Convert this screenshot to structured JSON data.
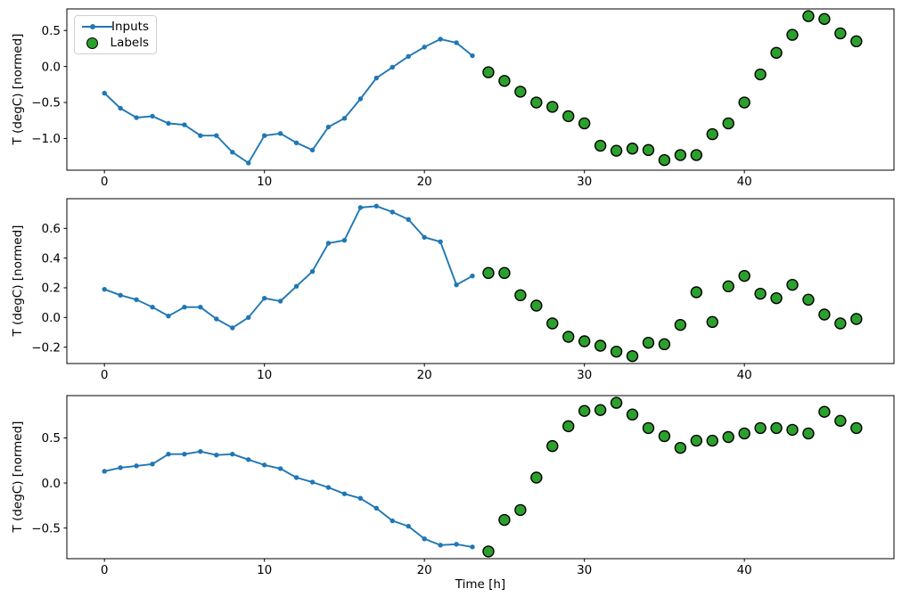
{
  "figure": {
    "title": "",
    "background": "#ffffff",
    "x_axis_label": "Time [h]",
    "y_axis_label": "T (degC) [normed]",
    "legend": {
      "location": "upper left",
      "items": [
        {
          "label": "Inputs",
          "marker": "line-with-dot",
          "color": "#1f77b4"
        },
        {
          "label": "Labels",
          "marker": "circle",
          "fill": "#2ca02c",
          "edge": "#000000"
        }
      ]
    }
  },
  "chart_data": [
    {
      "type": "line",
      "title": "",
      "xlabel": "",
      "ylabel": "T (degC) [normed]",
      "xlim": [
        -2.35,
        49.35
      ],
      "ylim": [
        -1.44,
        0.8
      ],
      "xticks": [
        0,
        10,
        20,
        30,
        40
      ],
      "yticks": [
        0.5,
        0.0,
        -0.5,
        -1.0
      ],
      "grid": false,
      "legend_visible": true,
      "series": [
        {
          "name": "Inputs",
          "type": "line+marker",
          "color": "#1f77b4",
          "x": [
            0,
            1,
            2,
            3,
            4,
            5,
            6,
            7,
            8,
            9,
            10,
            11,
            12,
            13,
            14,
            15,
            16,
            17,
            18,
            19,
            20,
            21,
            22,
            23
          ],
          "y": [
            -0.37,
            -0.58,
            -0.71,
            -0.69,
            -0.79,
            -0.81,
            -0.96,
            -0.96,
            -1.19,
            -1.34,
            -0.96,
            -0.93,
            -1.06,
            -1.16,
            -0.84,
            -0.72,
            -0.45,
            -0.16,
            -0.01,
            0.14,
            0.27,
            0.38,
            0.33,
            0.15
          ]
        },
        {
          "name": "Labels",
          "type": "scatter",
          "color": "#2ca02c",
          "edge": "#000000",
          "x": [
            24,
            25,
            26,
            27,
            28,
            29,
            30,
            31,
            32,
            33,
            34,
            35,
            36,
            37,
            38,
            39,
            40,
            41,
            42,
            43,
            44,
            45,
            46,
            47
          ],
          "y": [
            -0.08,
            -0.2,
            -0.35,
            -0.5,
            -0.56,
            -0.69,
            -0.79,
            -1.1,
            -1.17,
            -1.14,
            -1.16,
            -1.3,
            -1.23,
            -1.23,
            -0.94,
            -0.79,
            -0.5,
            -0.11,
            0.19,
            0.44,
            0.7,
            0.66,
            0.46,
            0.35
          ]
        }
      ]
    },
    {
      "type": "line",
      "title": "",
      "xlabel": "",
      "ylabel": "T (degC) [normed]",
      "xlim": [
        -2.35,
        49.35
      ],
      "ylim": [
        -0.31,
        0.8
      ],
      "xticks": [
        0,
        10,
        20,
        30,
        40
      ],
      "yticks": [
        0.6,
        0.4,
        0.2,
        0.0,
        -0.2
      ],
      "grid": false,
      "legend_visible": false,
      "series": [
        {
          "name": "Inputs",
          "type": "line+marker",
          "color": "#1f77b4",
          "x": [
            0,
            1,
            2,
            3,
            4,
            5,
            6,
            7,
            8,
            9,
            10,
            11,
            12,
            13,
            14,
            15,
            16,
            17,
            18,
            19,
            20,
            21,
            22,
            23
          ],
          "y": [
            0.19,
            0.15,
            0.12,
            0.07,
            0.01,
            0.07,
            0.07,
            -0.01,
            -0.07,
            0.0,
            0.13,
            0.11,
            0.21,
            0.31,
            0.5,
            0.52,
            0.74,
            0.75,
            0.71,
            0.66,
            0.54,
            0.51,
            0.22,
            0.28
          ]
        },
        {
          "name": "Labels",
          "type": "scatter",
          "color": "#2ca02c",
          "edge": "#000000",
          "x": [
            24,
            25,
            26,
            27,
            28,
            29,
            30,
            31,
            32,
            33,
            34,
            35,
            36,
            37,
            38,
            39,
            40,
            41,
            42,
            43,
            44,
            45,
            46,
            47
          ],
          "y": [
            0.3,
            0.3,
            0.15,
            0.08,
            -0.04,
            -0.13,
            -0.16,
            -0.19,
            -0.23,
            -0.26,
            -0.17,
            -0.18,
            -0.05,
            0.17,
            -0.03,
            0.21,
            0.28,
            0.16,
            0.13,
            0.22,
            0.12,
            0.02,
            -0.04,
            -0.01
          ]
        }
      ]
    },
    {
      "type": "line",
      "title": "",
      "xlabel": "Time [h]",
      "ylabel": "T (degC) [normed]",
      "xlim": [
        -2.35,
        49.35
      ],
      "ylim": [
        -0.84,
        0.97
      ],
      "xticks": [
        0,
        10,
        20,
        30,
        40
      ],
      "yticks": [
        0.5,
        0.0,
        -0.5
      ],
      "grid": false,
      "legend_visible": false,
      "series": [
        {
          "name": "Inputs",
          "type": "line+marker",
          "color": "#1f77b4",
          "x": [
            0,
            1,
            2,
            3,
            4,
            5,
            6,
            7,
            8,
            9,
            10,
            11,
            12,
            13,
            14,
            15,
            16,
            17,
            18,
            19,
            20,
            21,
            22,
            23
          ],
          "y": [
            0.13,
            0.17,
            0.19,
            0.21,
            0.32,
            0.32,
            0.35,
            0.31,
            0.32,
            0.26,
            0.2,
            0.16,
            0.06,
            0.01,
            -0.05,
            -0.12,
            -0.17,
            -0.28,
            -0.42,
            -0.48,
            -0.62,
            -0.69,
            -0.68,
            -0.71
          ]
        },
        {
          "name": "Labels",
          "type": "scatter",
          "color": "#2ca02c",
          "edge": "#000000",
          "x": [
            24,
            25,
            26,
            27,
            28,
            29,
            30,
            31,
            32,
            33,
            34,
            35,
            36,
            37,
            38,
            39,
            40,
            41,
            42,
            43,
            44,
            45,
            46,
            47
          ],
          "y": [
            -0.76,
            -0.41,
            -0.3,
            0.06,
            0.41,
            0.63,
            0.8,
            0.81,
            0.89,
            0.76,
            0.61,
            0.52,
            0.39,
            0.47,
            0.47,
            0.51,
            0.55,
            0.61,
            0.61,
            0.59,
            0.55,
            0.79,
            0.69,
            0.61
          ]
        }
      ]
    }
  ]
}
